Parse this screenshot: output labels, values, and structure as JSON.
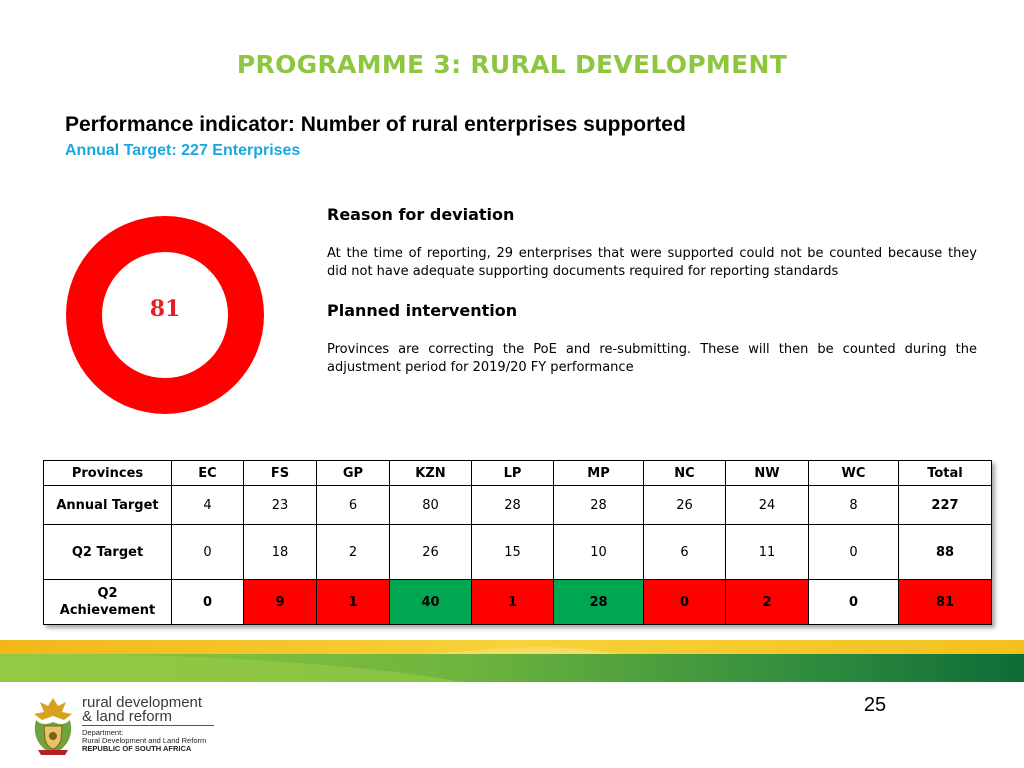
{
  "title": "PROGRAMME 3: RURAL DEVELOPMENT",
  "indicator": "Performance indicator:  Number of rural  enterprises supported",
  "annual_target": "Annual Target: 227 Enterprises",
  "donut": {
    "value": "81",
    "color": "#FF0000"
  },
  "reason": {
    "heading": "Reason for deviation",
    "text": "At the time of reporting, 29 enterprises that were supported could not be counted because they did not have adequate supporting documents required for reporting standards"
  },
  "intervention": {
    "heading": "Planned intervention",
    "text": "Provinces are correcting the PoE and re-submitting. These will then be counted during the adjustment period for 2019/20 FY performance"
  },
  "table": {
    "headers": [
      "Provinces",
      "EC",
      "FS",
      "GP",
      "KZN",
      "LP",
      "MP",
      "NC",
      "NW",
      "WC",
      "Total"
    ],
    "rows": [
      {
        "label": "Annual Target",
        "values": [
          "4",
          "23",
          "6",
          "80",
          "28",
          "28",
          "26",
          "24",
          "8",
          "227"
        ]
      },
      {
        "label": "Q2 Target",
        "values": [
          "0",
          "18",
          "2",
          "26",
          "15",
          "10",
          "6",
          "11",
          "0",
          "88"
        ]
      },
      {
        "label": "Q2 Achievement",
        "values": [
          "0",
          "9",
          "1",
          "40",
          "1",
          "28",
          "0",
          "2",
          "0",
          "81"
        ],
        "status": [
          "none",
          "red",
          "red",
          "green",
          "red",
          "green",
          "red",
          "red",
          "none",
          "red"
        ]
      }
    ]
  },
  "page_number": "25",
  "logo": {
    "line1": "rural development",
    "line2": "& land reform",
    "dept1": "Department:",
    "dept2": "Rural Development and Land Reform",
    "country": "REPUBLIC OF SOUTH AFRICA"
  },
  "colors": {
    "title": "#8DC63F",
    "target": "#1AA7E0",
    "red": "#FF0000",
    "green": "#00A650"
  }
}
